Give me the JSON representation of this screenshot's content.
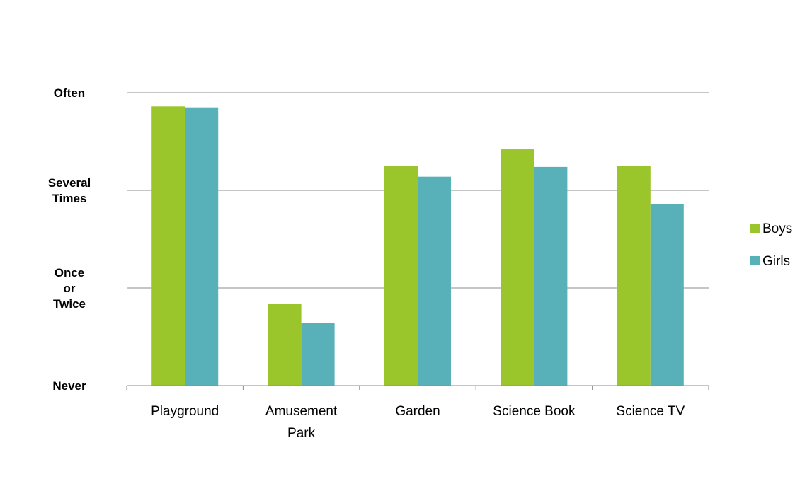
{
  "chart_data": {
    "type": "bar",
    "categories": [
      "Playground",
      "Amusement Park",
      "Garden",
      "Science Book",
      "Science TV"
    ],
    "series": [
      {
        "name": "Boys",
        "values": [
          2.86,
          0.84,
          2.25,
          2.42,
          2.25
        ],
        "color": "#9bc62b"
      },
      {
        "name": "Girls",
        "values": [
          2.85,
          0.64,
          2.14,
          2.24,
          1.86
        ],
        "color": "#58b0b8"
      }
    ],
    "y_tick_labels": [
      "Never",
      "Once or Twice",
      "Several Times",
      "Often"
    ],
    "ylim": [
      0,
      3
    ],
    "grid": true,
    "legend_position": "right"
  }
}
